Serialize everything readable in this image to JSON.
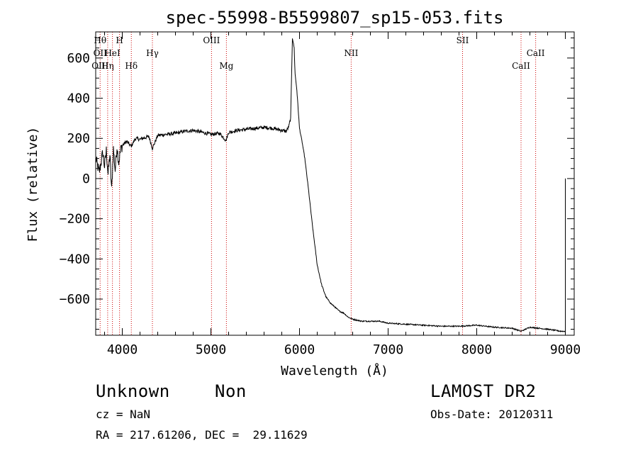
{
  "chart_data": {
    "type": "line",
    "title": "spec-55998-B5599807_sp15-053.fits",
    "xlabel": "Wavelength (Å)",
    "ylabel": "Flux (relative)",
    "xlim": [
      3700,
      9100
    ],
    "ylim": [
      -780,
      730
    ],
    "xticks": [
      4000,
      5000,
      6000,
      7000,
      8000,
      9000
    ],
    "yticks": [
      600,
      400,
      200,
      0,
      -200,
      -400,
      -600
    ],
    "grid": false,
    "series": [
      {
        "x": [
          3700,
          3740,
          3780,
          3800,
          3820,
          3840,
          3860,
          3880,
          3900,
          3920,
          3940,
          3960,
          3980,
          4000,
          4050,
          4100,
          4150,
          4200,
          4300,
          4340,
          4400,
          4500,
          4600,
          4700,
          4800,
          4900,
          5000,
          5100,
          5170,
          5200,
          5300,
          5400,
          5500,
          5600,
          5700,
          5800,
          5850,
          5880,
          5900,
          5920,
          5940,
          5950,
          5970,
          6000,
          6030,
          6060,
          6100,
          6150,
          6200,
          6250,
          6300,
          6350,
          6400,
          6450,
          6500,
          6550,
          6600,
          6700,
          6800,
          6900,
          7000,
          7200,
          7400,
          7600,
          7800,
          8000,
          8200,
          8400,
          8500,
          8600,
          8800,
          8950,
          9000
        ],
        "y": [
          100,
          30,
          130,
          60,
          140,
          20,
          120,
          -60,
          150,
          40,
          160,
          80,
          140,
          165,
          185,
          160,
          200,
          195,
          210,
          150,
          215,
          220,
          225,
          235,
          240,
          230,
          220,
          225,
          190,
          230,
          240,
          245,
          250,
          255,
          250,
          240,
          235,
          260,
          300,
          700,
          650,
          520,
          440,
          250,
          180,
          100,
          -50,
          -250,
          -430,
          -530,
          -590,
          -620,
          -640,
          -660,
          -670,
          -690,
          -700,
          -710,
          -710,
          -710,
          -720,
          -725,
          -730,
          -735,
          -735,
          -730,
          -740,
          -745,
          -760,
          -740,
          -750,
          -760,
          -760
        ]
      }
    ],
    "lines": [
      {
        "wl": 3750,
        "labels": [
          "Hθ",
          "OII",
          "OIII"
        ],
        "row": [
          0,
          1,
          2
        ]
      },
      {
        "wl": 3835,
        "labels": [
          "Hη"
        ],
        "row": [
          2
        ]
      },
      {
        "wl": 3889,
        "labels": [
          "HeI"
        ],
        "row": [
          1
        ]
      },
      {
        "wl": 3969,
        "labels": [
          "H"
        ],
        "row": [
          0
        ]
      },
      {
        "wl": 4102,
        "labels": [
          "Hδ"
        ],
        "row": [
          2
        ]
      },
      {
        "wl": 4340,
        "labels": [
          "Hγ"
        ],
        "row": [
          1
        ]
      },
      {
        "wl": 5007,
        "labels": [
          "OIII"
        ],
        "row": [
          0
        ]
      },
      {
        "wl": 5175,
        "labels": [
          "Mg"
        ],
        "row": [
          2
        ]
      },
      {
        "wl": 6583,
        "labels": [
          "NII"
        ],
        "row": [
          1
        ]
      },
      {
        "wl": 7840,
        "labels": [
          "SII"
        ],
        "row": [
          0
        ]
      },
      {
        "wl": 8500,
        "labels": [
          "CaII"
        ],
        "row": [
          2
        ]
      },
      {
        "wl": 8665,
        "labels": [
          "CaII"
        ],
        "row": [
          1
        ]
      }
    ]
  },
  "info": {
    "class_label": "Unknown",
    "subclass_label": "Non",
    "survey": "LAMOST DR2",
    "cz": "cz = NaN",
    "obs_date": "Obs-Date: 20120311",
    "radec": "RA = 217.61206, DEC =  29.11629"
  }
}
